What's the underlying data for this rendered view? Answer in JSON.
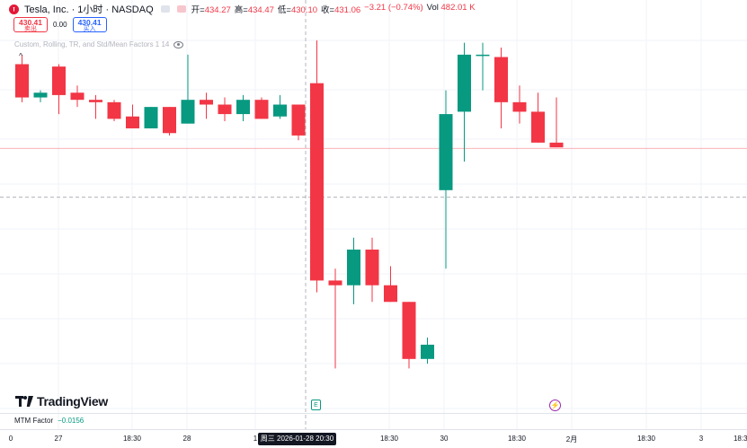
{
  "symbol": {
    "title": "Tesla, Inc. · 1小时 · NASDAQ",
    "logo_icon": "tesla-logo-icon"
  },
  "ohlc": {
    "open_label": "开=",
    "open": "434.27",
    "high_label": "高=",
    "high": "434.47",
    "low_label": "低=",
    "low": "430.10",
    "close_label": "收=",
    "close": "431.06",
    "change": "−3.21 (−0.74%)",
    "volume_label": "Vol",
    "volume": "482.01 K"
  },
  "trade": {
    "sell_price": "430.41",
    "sell_label": "卖出",
    "spread": "0.00",
    "buy_price": "430.41",
    "buy_label": "买入"
  },
  "indicator": {
    "label": "Custom, Rolling, TR, and Std/Mean Factors 1 14",
    "eye_icon": "eye-icon"
  },
  "watermark": "TradingView",
  "events": {
    "earnings": "E",
    "bolt": "⚡"
  },
  "mtm": {
    "label": "MTM Factor",
    "value": "−0.0156"
  },
  "time_axis": {
    "ticks": [
      "0",
      "27",
      "18:30",
      "28",
      "1",
      "18:30",
      "30",
      "18:30",
      "2月",
      "18:30",
      "3",
      "18:30"
    ],
    "crosshair": "周三 2026-01-28   20:30"
  },
  "colors": {
    "up": "#089981",
    "down": "#f23645",
    "grid": "#f0f3fa",
    "crosshair": "#9598a1",
    "price_line": "#f7525f"
  },
  "chart_data": {
    "type": "candlestick",
    "candles": [
      {
        "o": 434.6,
        "h": 435.0,
        "l": 433.0,
        "c": 433.2
      },
      {
        "o": 433.2,
        "h": 433.5,
        "l": 433.0,
        "c": 433.4
      },
      {
        "o": 434.5,
        "h": 434.6,
        "l": 432.5,
        "c": 433.3
      },
      {
        "o": 433.4,
        "h": 433.7,
        "l": 432.8,
        "c": 433.1
      },
      {
        "o": 433.1,
        "h": 433.3,
        "l": 432.3,
        "c": 433.0
      },
      {
        "o": 433.0,
        "h": 433.1,
        "l": 432.2,
        "c": 432.3
      },
      {
        "o": 432.4,
        "h": 432.9,
        "l": 431.9,
        "c": 431.9
      },
      {
        "o": 431.9,
        "h": 432.8,
        "l": 431.9,
        "c": 432.8
      },
      {
        "o": 432.8,
        "h": 432.8,
        "l": 431.6,
        "c": 431.7
      },
      {
        "o": 432.1,
        "h": 435.0,
        "l": 432.1,
        "c": 433.1
      },
      {
        "o": 433.1,
        "h": 433.4,
        "l": 432.3,
        "c": 432.9
      },
      {
        "o": 432.9,
        "h": 433.2,
        "l": 432.2,
        "c": 432.5
      },
      {
        "o": 432.5,
        "h": 433.3,
        "l": 432.2,
        "c": 433.1
      },
      {
        "o": 433.1,
        "h": 433.2,
        "l": 432.3,
        "c": 432.3
      },
      {
        "o": 432.4,
        "h": 433.3,
        "l": 432.3,
        "c": 432.9
      },
      {
        "o": 432.9,
        "h": 432.9,
        "l": 431.4,
        "c": 431.6
      },
      {
        "o": 433.8,
        "h": 435.6,
        "l": 425.0,
        "c": 425.5
      },
      {
        "o": 425.5,
        "h": 426.0,
        "l": 421.8,
        "c": 425.3
      },
      {
        "o": 425.3,
        "h": 427.3,
        "l": 424.5,
        "c": 426.8
      },
      {
        "o": 426.8,
        "h": 427.3,
        "l": 424.6,
        "c": 425.3
      },
      {
        "o": 425.3,
        "h": 426.1,
        "l": 424.6,
        "c": 424.6
      },
      {
        "o": 424.6,
        "h": 424.6,
        "l": 421.8,
        "c": 422.2
      },
      {
        "o": 422.2,
        "h": 423.1,
        "l": 422.0,
        "c": 422.8
      },
      {
        "o": 429.3,
        "h": 433.5,
        "l": 426.0,
        "c": 432.5
      },
      {
        "o": 432.6,
        "h": 435.5,
        "l": 430.5,
        "c": 435.0
      },
      {
        "o": 435.0,
        "h": 435.5,
        "l": 433.5,
        "c": 435.0
      },
      {
        "o": 434.9,
        "h": 435.3,
        "l": 431.9,
        "c": 433.0
      },
      {
        "o": 433.0,
        "h": 433.7,
        "l": 432.1,
        "c": 432.6
      },
      {
        "o": 432.6,
        "h": 433.4,
        "l": 431.3,
        "c": 431.3
      },
      {
        "o": 431.3,
        "h": 433.2,
        "l": 431.1,
        "c": 431.1
      }
    ],
    "crosshair_candle_index": 15,
    "current_price": 431.06,
    "horizontal_crosshair_price": 429.0
  }
}
